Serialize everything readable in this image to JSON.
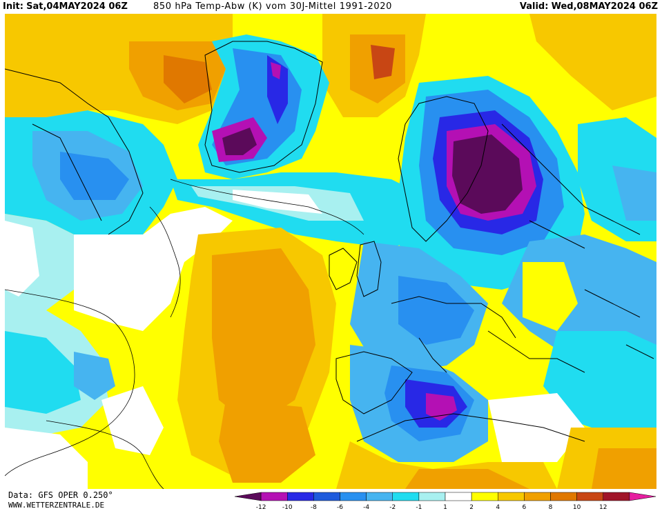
{
  "header": {
    "init_label": "Init:",
    "init_value": "Sat,04MAY2024 06Z",
    "title": "850 hPa Temp-Abw (K) vom 30J-Mittel 1991-2020",
    "valid_label": "Valid:",
    "valid_value": "Wed,08MAY2024 06Z"
  },
  "footer": {
    "data_source": "Data: GFS OPER 0.250°",
    "website": "WWW.WETTERZENTRALE.DE"
  },
  "legend": {
    "ticks": [
      "-12",
      "-10",
      "-8",
      "-6",
      "-4",
      "-2",
      "-1",
      "1",
      "2",
      "4",
      "6",
      "8",
      "10",
      "12"
    ],
    "colors": [
      "#5b0a5a",
      "#b410b4",
      "#2828e6",
      "#1e5adc",
      "#2890f0",
      "#46b4f0",
      "#20dcf0",
      "#a8f0f0",
      "#ffffff",
      "#ffff00",
      "#f7c800",
      "#f0a000",
      "#e07800",
      "#c84614",
      "#a01428",
      "#e61ea0"
    ]
  },
  "map_colors": {
    "ocean_white": "#ffffff",
    "mild_cold": "#a8f0f0",
    "cold_cyan": "#20dcf0",
    "cold_light_blue": "#46b4f0",
    "cold_blue": "#2890f0",
    "cold_deep_blue": "#1e5adc",
    "cold_royal_blue": "#2828e6",
    "very_cold_magenta": "#b410b4",
    "extreme_cold_purple": "#5b0a5a",
    "warm_yellow": "#ffff00",
    "warm_gold": "#f7c800",
    "warm_orange": "#f0a000",
    "hot_orange": "#e07800",
    "hot_red": "#c84614"
  }
}
